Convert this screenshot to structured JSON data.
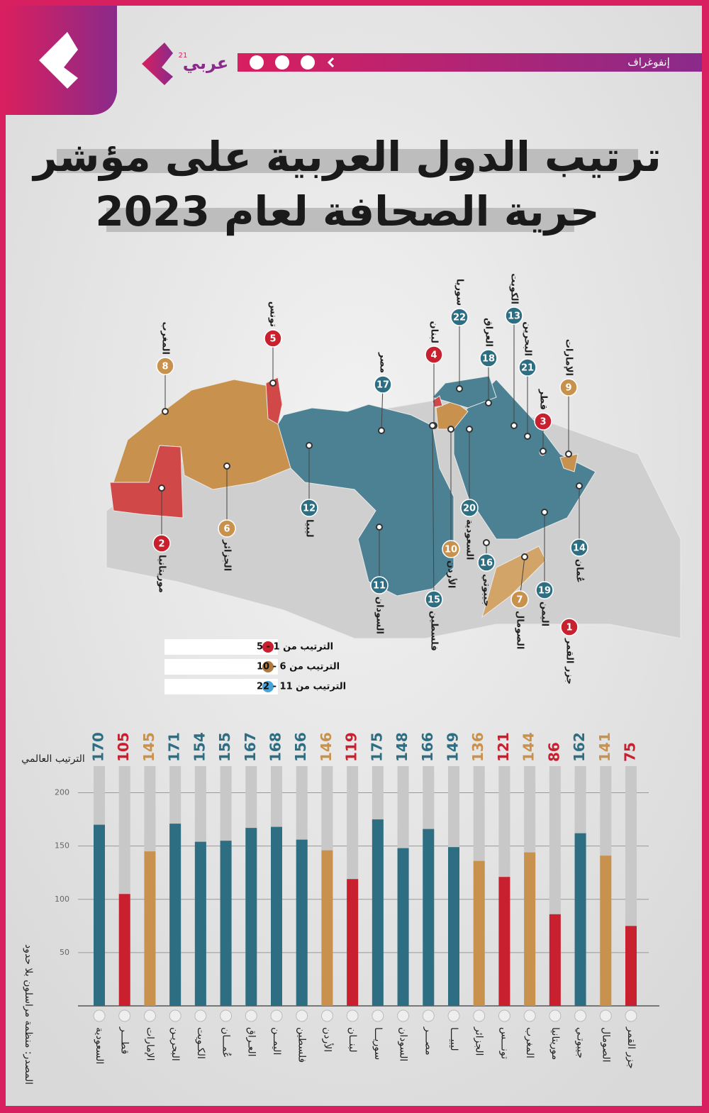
{
  "header": {
    "section": "إنفوغراف",
    "brand": "عربي",
    "brand_sup": "21"
  },
  "title_lines": [
    "ترتيب الدول العربية على مؤشر",
    "حرية الصحافة لعام 2023"
  ],
  "map": {
    "countries": [
      {
        "name": "المغرب",
        "rank": "8",
        "color": "#c8924e"
      },
      {
        "name": "تونس",
        "rank": "5",
        "color": "#c8202f"
      },
      {
        "name": "مصر",
        "rank": "17",
        "color": "#2e6e82"
      },
      {
        "name": "لبنان",
        "rank": "4",
        "color": "#c8202f"
      },
      {
        "name": "سوريا",
        "rank": "22",
        "color": "#2e6e82"
      },
      {
        "name": "العراق",
        "rank": "18",
        "color": "#2e6e82"
      },
      {
        "name": "الكويت",
        "rank": "13",
        "color": "#2e6e82"
      },
      {
        "name": "البحرين",
        "rank": "21",
        "color": "#2e6e82"
      },
      {
        "name": "الإمارات",
        "rank": "9",
        "color": "#c8924e"
      },
      {
        "name": "قطر",
        "rank": "3",
        "color": "#c8202f"
      },
      {
        "name": "موريتانيا",
        "rank": "2",
        "color": "#c8202f"
      },
      {
        "name": "الجزائر",
        "rank": "6",
        "color": "#c8924e"
      },
      {
        "name": "ليبيا",
        "rank": "12",
        "color": "#2e6e82"
      },
      {
        "name": "السودان",
        "rank": "11",
        "color": "#2e6e82"
      },
      {
        "name": "فلسطين",
        "rank": "15",
        "color": "#2e6e82"
      },
      {
        "name": "الأردن",
        "rank": "10",
        "color": "#c8924e"
      },
      {
        "name": "السعودية",
        "rank": "20",
        "color": "#2e6e82"
      },
      {
        "name": "جيبوتي",
        "rank": "16",
        "color": "#2e6e82"
      },
      {
        "name": "الصومال",
        "rank": "7",
        "color": "#c8924e"
      },
      {
        "name": "اليمن",
        "rank": "19",
        "color": "#2e6e82"
      },
      {
        "name": "عُمان",
        "rank": "14",
        "color": "#2e6e82"
      },
      {
        "name": "جزر القمر",
        "rank": "1",
        "color": "#c8202f"
      }
    ],
    "legend": [
      {
        "label": "الترتيب من 1 - 5",
        "color": "#c8202f"
      },
      {
        "label": "الترتيب من 6 - 10",
        "color": "#b07a3e"
      },
      {
        "label": "الترتيب من 11 - 22",
        "color": "#4aa3d8"
      }
    ]
  },
  "source": "المصدر: منظمة مراسلون بلا حدود",
  "chart_data": {
    "type": "bar",
    "ylabel": "الترتيب العالمي",
    "categories": [
      "السعودية",
      "قطـــر",
      "الإمارات",
      "البحريـن",
      "الكـويت",
      "عُمـــان",
      "العـراق",
      "اليمــن",
      "فلسطين",
      "الأردن",
      "لبنــان",
      "سوريـــا",
      "السودان",
      "مصـــر",
      "ليبيـــا",
      "الجزائر",
      "تونـــس",
      "المغرب",
      "موريتانيا",
      "جيبوتـي",
      "الصومال",
      "جزر القمر"
    ],
    "values": [
      170,
      105,
      145,
      171,
      154,
      155,
      167,
      168,
      156,
      146,
      119,
      175,
      148,
      166,
      149,
      136,
      121,
      144,
      86,
      162,
      141,
      75
    ],
    "colors": [
      "#2e6e82",
      "#c8202f",
      "#c8924e",
      "#2e6e82",
      "#2e6e82",
      "#2e6e82",
      "#2e6e82",
      "#2e6e82",
      "#2e6e82",
      "#c8924e",
      "#c8202f",
      "#2e6e82",
      "#2e6e82",
      "#2e6e82",
      "#2e6e82",
      "#c8924e",
      "#c8202f",
      "#c8924e",
      "#c8202f",
      "#2e6e82",
      "#c8924e",
      "#c8202f"
    ],
    "ylim": [
      0,
      225
    ],
    "yticks": [
      50,
      100,
      150,
      200
    ],
    "grid": true
  }
}
